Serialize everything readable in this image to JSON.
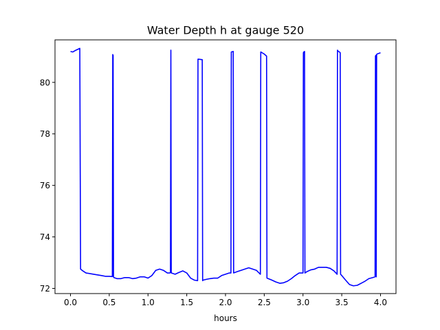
{
  "chart_data": {
    "type": "line",
    "title": "Water Depth h at gauge 520",
    "xlabel": "hours",
    "ylabel": "",
    "xlim": [
      -0.2,
      4.2
    ],
    "ylim": [
      71.8,
      81.65
    ],
    "xticks": [
      0.0,
      0.5,
      1.0,
      1.5,
      2.0,
      2.5,
      3.0,
      3.5,
      4.0
    ],
    "xtick_labels": [
      "0.0",
      "0.5",
      "1.0",
      "1.5",
      "2.0",
      "2.5",
      "3.0",
      "3.5",
      "4.0"
    ],
    "yticks": [
      72,
      74,
      76,
      78,
      80
    ],
    "ytick_labels": [
      "72",
      "74",
      "76",
      "78",
      "80"
    ],
    "grid": false,
    "legend": "none",
    "series": [
      {
        "color": "#0000ff",
        "x": [
          0.0,
          0.03,
          0.07,
          0.12,
          0.13,
          0.15,
          0.2,
          0.3,
          0.4,
          0.45,
          0.5,
          0.54,
          0.545,
          0.55,
          0.555,
          0.56,
          0.6,
          0.65,
          0.7,
          0.75,
          0.8,
          0.85,
          0.9,
          0.95,
          1.0,
          1.05,
          1.1,
          1.15,
          1.2,
          1.25,
          1.28,
          1.29,
          1.295,
          1.3,
          1.35,
          1.4,
          1.45,
          1.5,
          1.55,
          1.6,
          1.64,
          1.645,
          1.65,
          1.7,
          1.705,
          1.71,
          1.75,
          1.8,
          1.85,
          1.9,
          1.95,
          2.0,
          2.05,
          2.07,
          2.075,
          2.1,
          2.105,
          2.15,
          2.2,
          2.25,
          2.3,
          2.35,
          2.4,
          2.45,
          2.455,
          2.5,
          2.53,
          2.535,
          2.6,
          2.65,
          2.7,
          2.75,
          2.8,
          2.85,
          2.9,
          2.95,
          3.0,
          3.005,
          3.01,
          3.02,
          3.025,
          3.05,
          3.1,
          3.15,
          3.2,
          3.25,
          3.3,
          3.35,
          3.4,
          3.44,
          3.445,
          3.45,
          3.47,
          3.48,
          3.485,
          3.5,
          3.55,
          3.6,
          3.65,
          3.7,
          3.75,
          3.8,
          3.85,
          3.9,
          3.93,
          3.935,
          3.94,
          3.945,
          3.95,
          3.955,
          4.0
        ],
        "y": [
          81.2,
          81.18,
          81.25,
          81.32,
          72.75,
          72.7,
          72.6,
          72.55,
          72.5,
          72.47,
          72.47,
          72.46,
          81.08,
          81.05,
          72.45,
          72.42,
          72.38,
          72.38,
          72.42,
          72.42,
          72.38,
          72.4,
          72.45,
          72.45,
          72.4,
          72.5,
          72.7,
          72.75,
          72.7,
          72.6,
          72.6,
          72.62,
          81.25,
          72.6,
          72.55,
          72.62,
          72.68,
          72.6,
          72.4,
          72.32,
          72.3,
          80.9,
          80.9,
          80.88,
          72.3,
          72.32,
          72.35,
          72.38,
          72.4,
          72.4,
          72.5,
          72.55,
          72.6,
          72.6,
          81.18,
          81.2,
          72.6,
          72.65,
          72.7,
          72.75,
          72.8,
          72.75,
          72.7,
          72.55,
          81.18,
          81.1,
          81.02,
          72.4,
          72.32,
          72.25,
          72.2,
          72.22,
          72.28,
          72.38,
          72.5,
          72.6,
          72.6,
          81.15,
          81.18,
          81.2,
          72.6,
          72.65,
          72.72,
          72.75,
          72.82,
          72.82,
          72.82,
          72.78,
          72.68,
          72.55,
          81.25,
          81.22,
          81.18,
          81.15,
          72.55,
          72.5,
          72.32,
          72.15,
          72.1,
          72.12,
          72.2,
          72.28,
          72.38,
          72.42,
          72.45,
          81.02,
          81.05,
          72.45,
          81.08,
          81.1,
          81.15
        ]
      }
    ]
  }
}
